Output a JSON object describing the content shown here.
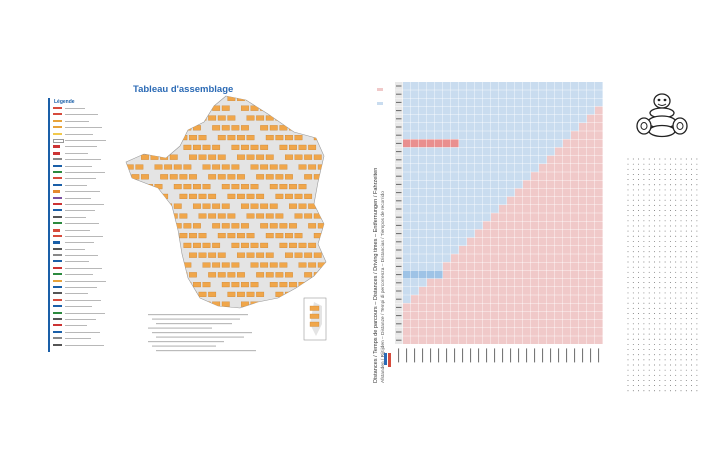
{
  "legend": {
    "title": "Légende",
    "rows": [
      {
        "color": "#d64b3c",
        "kind": "line"
      },
      {
        "color": "#d64b3c",
        "kind": "line"
      },
      {
        "color": "#e8a33a",
        "kind": "line"
      },
      {
        "color": "#e8a33a",
        "kind": "line"
      },
      {
        "color": "#f2c94c",
        "kind": "line"
      },
      {
        "color": "#ffffff",
        "kind": "line"
      },
      {
        "color": "#c33",
        "kind": "block"
      },
      {
        "color": "#c33",
        "kind": "block"
      },
      {
        "color": "#888",
        "kind": "line"
      },
      {
        "color": "#1a5fa8",
        "kind": "line"
      },
      {
        "color": "#2c8a3e",
        "kind": "line"
      },
      {
        "color": "#d64b3c",
        "kind": "line"
      },
      {
        "color": "#1a5fa8",
        "kind": "line"
      },
      {
        "color": "#e58a2e",
        "kind": "block"
      },
      {
        "color": "#7a4fa0",
        "kind": "line"
      },
      {
        "color": "#c33",
        "kind": "line"
      },
      {
        "color": "#1a5fa8",
        "kind": "line"
      },
      {
        "color": "#555",
        "kind": "line"
      },
      {
        "color": "#2c8a3e",
        "kind": "line"
      },
      {
        "color": "#d64b3c",
        "kind": "block"
      },
      {
        "color": "#d64b3c",
        "kind": "line"
      },
      {
        "color": "#1a5fa8",
        "kind": "block"
      },
      {
        "color": "#555",
        "kind": "line"
      },
      {
        "color": "#888",
        "kind": "line"
      },
      {
        "color": "#1a5fa8",
        "kind": "line"
      },
      {
        "color": "#c33",
        "kind": "line"
      },
      {
        "color": "#2c8a3e",
        "kind": "line"
      },
      {
        "color": "#e8a33a",
        "kind": "line"
      },
      {
        "color": "#1a5fa8",
        "kind": "line"
      },
      {
        "color": "#555",
        "kind": "line"
      },
      {
        "color": "#d64b3c",
        "kind": "line"
      },
      {
        "color": "#1a5fa8",
        "kind": "line"
      },
      {
        "color": "#2c8a3e",
        "kind": "line"
      },
      {
        "color": "#555",
        "kind": "line"
      },
      {
        "color": "#c33",
        "kind": "line"
      },
      {
        "color": "#1a5fa8",
        "kind": "line"
      },
      {
        "color": "#888",
        "kind": "line"
      },
      {
        "color": "#555",
        "kind": "line"
      }
    ]
  },
  "assemblage": {
    "title": "Tableau d'assemblage",
    "tile_color": "#f0a64a",
    "background_color": "#e4e4e4"
  },
  "distances": {
    "title": "Distances / Temps de parcours – Distances / Driving times – Entfernungen / Fahrzeiten",
    "subtitle": "Afstanden / Rijtijden – Distanze / Tempi di percorrenza – Distancias / Tiempos de recorrido",
    "colors": {
      "blue": "#c9dcef",
      "red": "#f0c9c9",
      "header": "#e8e8e8",
      "highlight_red": "#e98f8f",
      "highlight_blue": "#9ec3e6"
    }
  },
  "mascot": {
    "name": "bibendum-mascot-icon"
  }
}
